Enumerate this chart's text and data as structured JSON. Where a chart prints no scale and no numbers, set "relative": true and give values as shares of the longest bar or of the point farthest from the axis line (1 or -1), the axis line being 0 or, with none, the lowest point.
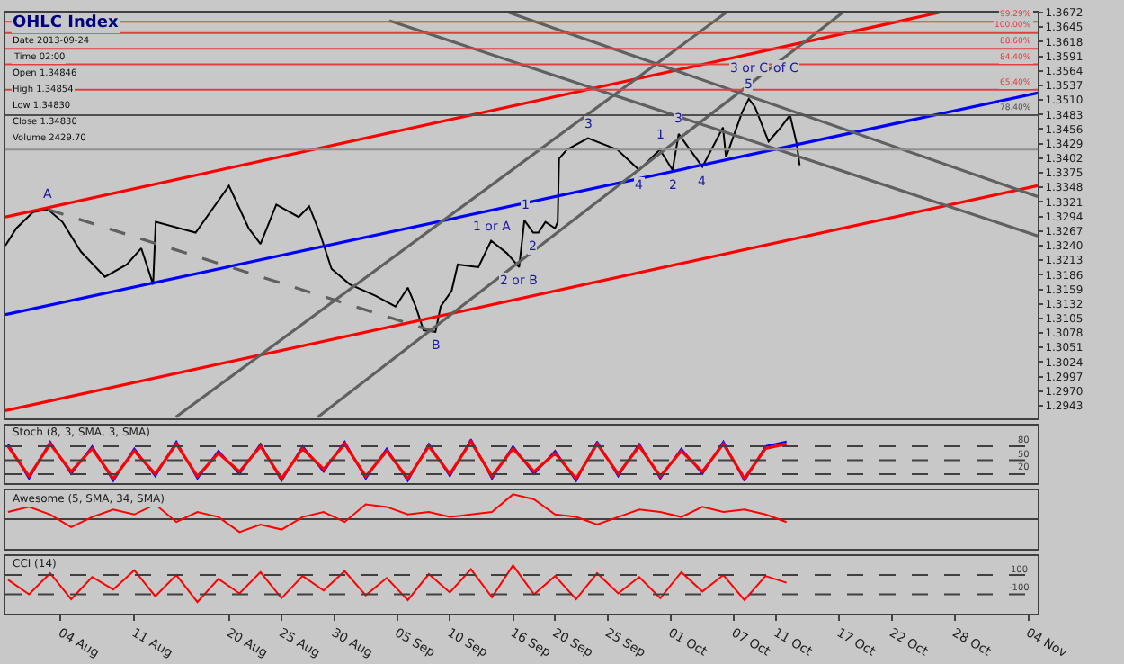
{
  "chart_data": [
    {
      "type": "line",
      "title": "OHLC Index",
      "grid": false,
      "tick_labels": "y",
      "marker": "none",
      "annotations": [
        "Date 2013-09-24",
        "Time 02:00",
        "Open 1.34846",
        "High 1.34854",
        "Low 1.34830",
        "Close 1.34830",
        "Volume 2429.70",
        {
          "text": "A",
          "x": "2013-08-02T19:00",
          "y": 1.3307
        },
        {
          "text": "B",
          "x": "2013-09-08T15:00",
          "y": 1.308
        },
        {
          "text": "1 or A",
          "x": "2013-09-13T22:00",
          "y": 1.3249
        },
        {
          "text": "2 or B",
          "x": "2013-09-16T14:00",
          "y": 1.32
        },
        {
          "text": "1",
          "x": "2013-09-17T02:00",
          "y": 1.3287
        },
        {
          "text": "2",
          "x": "2013-09-17T22:00",
          "y": 1.3264
        },
        {
          "text": "3",
          "x": "2013-09-23T03:00",
          "y": 1.3439
        },
        {
          "text": "4",
          "x": "2013-09-28T00:00",
          "y": 1.338
        },
        {
          "text": "1",
          "x": "2013-09-29T23:00",
          "y": 1.3418
        },
        {
          "text": "2",
          "x": "2013-10-01T04:00",
          "y": 1.338
        },
        {
          "text": "3",
          "x": "2013-10-01T18:00",
          "y": 1.3447
        },
        {
          "text": "4",
          "x": "2013-10-04T00:00",
          "y": 1.3386
        },
        {
          "text": "5",
          "x": "2013-10-08T10:00",
          "y": 1.3512
        },
        {
          "text": "3 or C",
          "x": "2013-10-08T10:00",
          "y": 1.3512
        },
        {
          "text": "of C",
          "x": "2013-10-08T10:00",
          "y": 1.3512
        },
        {
          "text": "99.29%",
          "x": "2013-11-04T12:00",
          "y": 1.3655
        },
        {
          "text": "100.00%",
          "x": "2013-11-04T12:00",
          "y": 1.3634
        },
        {
          "text": "88.60%",
          "x": "2013-11-04T12:00",
          "y": 1.3605
        },
        {
          "text": "84.40%",
          "x": "2013-11-04T12:00",
          "y": 1.3576
        },
        {
          "text": "65.40%",
          "x": "2013-11-04T12:00",
          "y": 1.3529
        },
        {
          "text": "78.40%",
          "x": "2013-11-04T12:00",
          "y": 1.3482
        }
      ],
      "x": [
        "2013-07-29T18:00",
        "2013-07-30T19:00",
        "2013-08-01T09:00",
        "2013-08-02T19:00",
        "2013-08-04T04:00",
        "2013-08-05T22:00",
        "2013-08-08T05:00",
        "2013-08-10T07:00",
        "2013-08-11T16:00",
        "2013-08-12T19:00",
        "2013-08-13T01:00",
        "2013-08-16T20:00",
        "2013-08-20T00:00",
        "2013-08-21T21:00",
        "2013-08-23T00:00",
        "2013-08-24T12:00",
        "2013-08-26T15:00",
        "2013-08-27T15:00",
        "2013-08-28T15:00",
        "2013-08-29T18:00",
        "2013-08-31T12:00",
        "2013-09-02T22:00",
        "2013-09-04T20:00",
        "2013-09-06T00:00",
        "2013-09-06T18:00",
        "2013-09-07T12:00",
        "2013-09-08T15:00",
        "2013-09-09T03:00",
        "2013-09-10T04:00",
        "2013-09-10T18:00",
        "2013-09-12T17:00",
        "2013-09-13T22:00",
        "2013-09-15T10:00",
        "2013-09-16T14:00",
        "2013-09-17T02:00",
        "2013-09-17T22:00",
        "2013-09-18T10:00",
        "2013-09-19T02:00",
        "2013-09-20T00:00",
        "2013-09-20T06:00",
        "2013-09-20T09:00",
        "2013-09-21T03:00",
        "2013-09-23T03:00",
        "2013-09-25T22:00",
        "2013-09-28T00:00",
        "2013-09-29T23:00",
        "2013-10-01T04:00",
        "2013-10-01T18:00",
        "2013-10-04T00:00",
        "2013-10-05T23:00",
        "2013-10-06T06:00",
        "2013-10-07T19:00",
        "2013-10-08T10:00",
        "2013-10-09T00:00",
        "2013-10-10T07:00",
        "2013-10-11T11:00",
        "2013-10-12T08:00",
        "2013-10-12T23:00",
        "2013-10-13T06:00"
      ],
      "series": [
        {
          "color": "#000000",
          "values": [
            1.324,
            1.3272,
            1.3302,
            1.3307,
            1.3284,
            1.3229,
            1.3182,
            1.3205,
            1.3235,
            1.3168,
            1.3284,
            1.3264,
            1.3351,
            1.3272,
            1.3243,
            1.3316,
            1.3293,
            1.3313,
            1.3264,
            1.3197,
            1.3168,
            1.3147,
            1.3127,
            1.3162,
            1.3127,
            1.3083,
            1.308,
            1.3127,
            1.3156,
            1.3205,
            1.32,
            1.3249,
            1.3226,
            1.32,
            1.3287,
            1.3264,
            1.3264,
            1.3284,
            1.3272,
            1.3284,
            1.3401,
            1.3418,
            1.3439,
            1.3418,
            1.338,
            1.3418,
            1.338,
            1.3447,
            1.3386,
            1.3459,
            1.3404,
            1.3488,
            1.3512,
            1.3497,
            1.3433,
            1.3459,
            1.3482,
            1.343,
            1.3389
          ]
        },
        {
          "color": "#ff0000",
          "x": [
            "2013-07-29T18:00",
            "2013-10-26T12:00"
          ],
          "values": [
            1.3293,
            1.3672
          ]
        },
        {
          "color": "#0000ff",
          "x": [
            "2013-07-29T18:00",
            "2013-11-04T21:00"
          ],
          "values": [
            1.3112,
            1.3523
          ]
        },
        {
          "color": "#ff0000",
          "x": [
            "2013-07-29T18:00",
            "2013-11-04T21:00"
          ],
          "values": [
            1.2934,
            1.3351
          ]
        },
        {
          "color": "#606060",
          "line_style": "dashed",
          "x": [
            "2013-08-02T19:00",
            "2013-09-08T15:00"
          ],
          "values": [
            1.3307,
            1.308
          ]
        },
        {
          "color": "#606060",
          "x": [
            "2013-08-14T23:00",
            "2013-10-06T06:00"
          ],
          "values": [
            1.2922,
            1.3672
          ]
        },
        {
          "color": "#606060",
          "x": [
            "2013-08-28T11:00",
            "2013-10-17T08:00"
          ],
          "values": [
            1.2922,
            1.3672
          ]
        },
        {
          "color": "#606060",
          "x": [
            "2013-09-15T15:00",
            "2013-11-04T21:00"
          ],
          "values": [
            1.3672,
            1.3331
          ]
        },
        {
          "color": "#606060",
          "x": [
            "2013-09-04T06:00",
            "2013-11-04T21:00"
          ],
          "values": [
            1.3657,
            1.3258
          ]
        }
      ],
      "ref_lines": [
        {
          "axis": "y",
          "value": 1.3655,
          "color": "#e04040"
        },
        {
          "axis": "y",
          "value": 1.3634,
          "color": "#e04040"
        },
        {
          "axis": "y",
          "value": 1.3605,
          "color": "#e04040"
        },
        {
          "axis": "y",
          "value": 1.3576,
          "color": "#e04040"
        },
        {
          "axis": "y",
          "value": 1.3529,
          "color": "#e04040"
        },
        {
          "axis": "y",
          "value": 1.3482,
          "color": "#505050"
        },
        {
          "axis": "y",
          "value": 1.3418,
          "color": "#909090"
        }
      ],
      "xlim": [
        "2013-07-29T18:00",
        "2013-11-04T21:00"
      ],
      "ylim": [
        1.292,
        1.3672
      ],
      "yticks": [
        1.2943,
        {
          "value": 1.297,
          "label": "1.2970"
        },
        1.2997,
        1.3024,
        1.3051,
        1.3078,
        1.3105,
        1.3132,
        1.3159,
        1.3186,
        1.3213,
        {
          "value": 1.324,
          "label": "1.3240"
        },
        1.3267,
        1.3294,
        1.3321,
        1.3348,
        1.3375,
        1.3402,
        1.3429,
        1.3456,
        1.3483,
        {
          "value": 1.351,
          "label": "1.3510"
        },
        1.3537,
        1.3564,
        1.3591,
        1.3618,
        1.3645,
        1.3672
      ]
    },
    {
      "type": "line",
      "title": "Stoch (8, 3, SMA, 3, SMA)",
      "grid": false,
      "tick_labels": false,
      "marker": "none",
      "x": [
        "2013-07-30",
        "2013-08-01",
        "2013-08-03",
        "2013-08-05",
        "2013-08-07",
        "2013-08-09",
        "2013-08-11",
        "2013-08-13",
        "2013-08-15",
        "2013-08-17",
        "2013-08-19",
        "2013-08-21",
        "2013-08-23",
        "2013-08-25",
        "2013-08-27",
        "2013-08-29",
        "2013-08-31",
        "2013-09-02",
        "2013-09-04",
        "2013-09-06",
        "2013-09-08",
        "2013-09-10",
        "2013-09-12",
        "2013-09-14",
        "2013-09-16",
        "2013-09-18",
        "2013-09-20",
        "2013-09-22",
        "2013-09-24",
        "2013-09-26",
        "2013-09-28",
        "2013-09-30",
        "2013-10-02",
        "2013-10-04",
        "2013-10-06",
        "2013-10-08",
        "2013-10-10",
        "2013-10-12"
      ],
      "series": [
        {
          "color": "#0000ff",
          "values": [
            85,
            10,
            90,
            20,
            80,
            5,
            75,
            15,
            90,
            10,
            70,
            20,
            85,
            5,
            80,
            25,
            90,
            10,
            75,
            5,
            85,
            15,
            95,
            10,
            80,
            20,
            70,
            5,
            90,
            15,
            85,
            10,
            75,
            20,
            90,
            5,
            80,
            90
          ]
        },
        {
          "color": "#ff0000",
          "values": [
            80,
            15,
            85,
            25,
            75,
            10,
            70,
            20,
            85,
            15,
            65,
            25,
            80,
            10,
            75,
            30,
            85,
            15,
            70,
            10,
            80,
            20,
            90,
            15,
            75,
            25,
            65,
            10,
            85,
            20,
            80,
            15,
            70,
            25,
            85,
            10,
            75,
            85
          ]
        }
      ],
      "ref_lines": [
        {
          "axis": "y",
          "value": 80,
          "label": "80",
          "line_style": "dashed",
          "color": "#404040"
        },
        {
          "axis": "y",
          "value": 50,
          "label": "50",
          "line_style": "dashed",
          "color": "#404040"
        },
        {
          "axis": "y",
          "value": 20,
          "label": "20",
          "line_style": "dashed",
          "color": "#404040"
        }
      ],
      "xlim": [
        "2013-07-29T18:00",
        "2013-11-04T21:00"
      ],
      "ylim": [
        0,
        125
      ]
    },
    {
      "type": "line",
      "title": "Awesome (5, SMA, 34, SMA)",
      "grid": false,
      "relative": true,
      "tick_labels": false,
      "marker": "none",
      "x": [
        "2013-07-30",
        "2013-08-01",
        "2013-08-03",
        "2013-08-05",
        "2013-08-07",
        "2013-08-09",
        "2013-08-11",
        "2013-08-13",
        "2013-08-15",
        "2013-08-17",
        "2013-08-19",
        "2013-08-21",
        "2013-08-23",
        "2013-08-25",
        "2013-08-27",
        "2013-08-29",
        "2013-08-31",
        "2013-09-02",
        "2013-09-04",
        "2013-09-06",
        "2013-09-08",
        "2013-09-10",
        "2013-09-12",
        "2013-09-14",
        "2013-09-16",
        "2013-09-18",
        "2013-09-20",
        "2013-09-22",
        "2013-09-24",
        "2013-09-26",
        "2013-09-28",
        "2013-09-30",
        "2013-10-02",
        "2013-10-04",
        "2013-10-06",
        "2013-10-08",
        "2013-10-10",
        "2013-10-12"
      ],
      "series": [
        {
          "color": "#ff0000",
          "values": [
            0.3,
            0.5,
            0.2,
            -0.3,
            0.1,
            0.4,
            0.2,
            0.6,
            -0.1,
            0.3,
            0.1,
            -0.5,
            -0.2,
            -0.4,
            0.1,
            0.3,
            -0.1,
            0.6,
            0.5,
            0.2,
            0.3,
            0.1,
            0.2,
            0.3,
            1,
            0.8,
            0.2,
            0.1,
            -0.2,
            0.1,
            0.4,
            0.3,
            0.1,
            0.5,
            0.3,
            0.4,
            0.2,
            -0.1
          ]
        }
      ],
      "xlim": [
        "2013-07-29T18:00",
        "2013-11-04T21:00"
      ]
    },
    {
      "type": "line",
      "title": "CCI (14)",
      "grid": false,
      "tick_labels": "x",
      "marker": "none",
      "x": [
        "2013-07-30",
        "2013-08-01",
        "2013-08-03",
        "2013-08-05",
        "2013-08-07",
        "2013-08-09",
        "2013-08-11",
        "2013-08-13",
        "2013-08-15",
        "2013-08-17",
        "2013-08-19",
        "2013-08-21",
        "2013-08-23",
        "2013-08-25",
        "2013-08-27",
        "2013-08-29",
        "2013-08-31",
        "2013-09-02",
        "2013-09-04",
        "2013-09-06",
        "2013-09-08",
        "2013-09-10",
        "2013-09-12",
        "2013-09-14",
        "2013-09-16",
        "2013-09-18",
        "2013-09-20",
        "2013-09-22",
        "2013-09-24",
        "2013-09-26",
        "2013-09-28",
        "2013-09-30",
        "2013-10-02",
        "2013-10-04",
        "2013-10-06",
        "2013-10-08",
        "2013-10-10",
        "2013-10-12"
      ],
      "series": [
        {
          "color": "#ff0000",
          "values": [
            50,
            -100,
            120,
            -150,
            80,
            -50,
            150,
            -120,
            100,
            -180,
            60,
            -90,
            130,
            -140,
            90,
            -60,
            140,
            -110,
            70,
            -160,
            110,
            -80,
            160,
            -130,
            200,
            -100,
            90,
            -150,
            120,
            -90,
            80,
            -140,
            130,
            -70,
            100,
            -160,
            90,
            20
          ]
        }
      ],
      "ref_lines": [
        {
          "axis": "y",
          "value": 100,
          "label": "100",
          "line_style": "dashed",
          "color": "#404040"
        },
        {
          "axis": "y",
          "value": -100,
          "label": "-100",
          "line_style": "dashed",
          "color": "#404040"
        }
      ],
      "xlim": [
        "2013-07-29T18:00",
        "2013-11-04T21:00"
      ],
      "ylim": [
        -300,
        300
      ],
      "xticks": [
        {
          "value": "2013-08-04",
          "label": "04 Aug"
        },
        {
          "value": "2013-08-11",
          "label": "11 Aug"
        },
        {
          "value": "2013-08-20",
          "label": "20 Aug"
        },
        {
          "value": "2013-08-25",
          "label": "25 Aug"
        },
        {
          "value": "2013-08-30",
          "label": "30 Aug"
        },
        {
          "value": "2013-09-05",
          "label": "05 Sep"
        },
        {
          "value": "2013-09-10",
          "label": "10 Sep"
        },
        {
          "value": "2013-09-16",
          "label": "16 Sep"
        },
        {
          "value": "2013-09-20",
          "label": "20 Sep"
        },
        {
          "value": "2013-09-25",
          "label": "25 Sep"
        },
        {
          "value": "2013-10-01",
          "label": "01 Oct"
        },
        {
          "value": "2013-10-07",
          "label": "07 Oct"
        },
        {
          "value": "2013-10-11",
          "label": "11 Oct"
        },
        {
          "value": "2013-10-17",
          "label": "17 Oct"
        },
        {
          "value": "2013-10-22",
          "label": "22 Oct"
        },
        {
          "value": "2013-10-28",
          "label": "28 Oct"
        },
        {
          "value": "2013-11-04",
          "label": "04 Nov"
        }
      ]
    }
  ]
}
